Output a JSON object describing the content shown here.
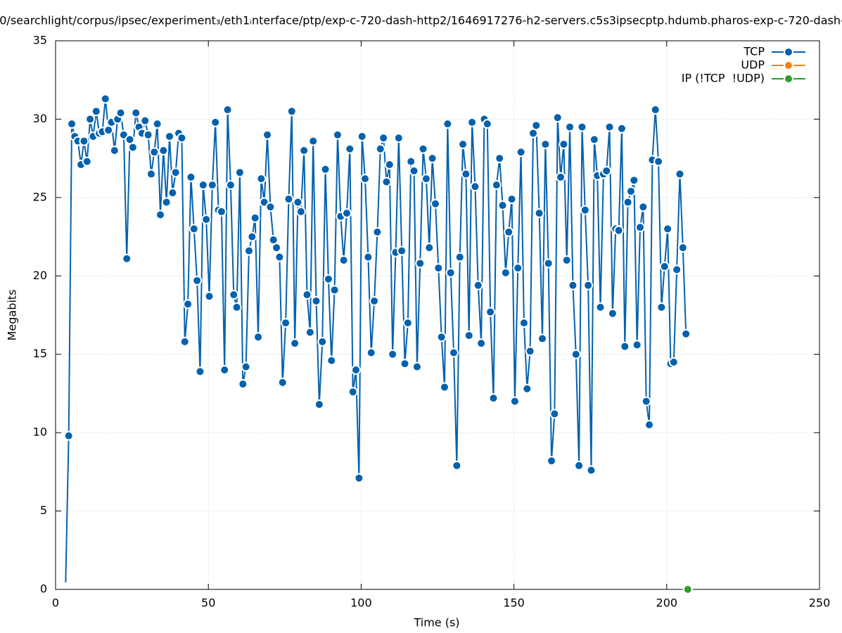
{
  "chart_data": {
    "type": "line",
    "title": "0/searchlight/corpus/ipsec/experiment₃/eth1ᵢnterface/ptp/exp-c-720-dash-http2/1646917276-h2-servers.c5s3ipsecptp.hdumb.pharos-exp-c-720-dash-",
    "x_label": "Time (s)",
    "y_label": "Megabits",
    "xlim": [
      0,
      250
    ],
    "xticks": [
      0,
      50,
      100,
      150,
      200,
      250
    ],
    "ylim": [
      0,
      35
    ],
    "yticks": [
      0,
      5,
      10,
      15,
      20,
      25,
      30,
      35
    ],
    "grid": true,
    "legend": "top-right",
    "series": [
      {
        "name": "TCP",
        "color": "#0461ad",
        "x": [
          3.3,
          4.3,
          5.3,
          6.3,
          7.3,
          8.3,
          9.3,
          10.3,
          11.3,
          12.3,
          13.3,
          14.3,
          15.3,
          16.3,
          17.3,
          18.3,
          19.3,
          20.3,
          21.3,
          22.3,
          23.3,
          24.3,
          25.3,
          26.3,
          27.3,
          28.3,
          29.3,
          30.3,
          31.3,
          32.3,
          33.3,
          34.3,
          35.3,
          36.3,
          37.3,
          38.3,
          39.3,
          40.3,
          41.3,
          42.3,
          43.3,
          44.3,
          45.3,
          46.3,
          47.3,
          48.3,
          49.3,
          50.3,
          51.3,
          52.3,
          53.3,
          54.3,
          55.3,
          56.3,
          57.3,
          58.3,
          59.3,
          60.3,
          61.3,
          62.3,
          63.3,
          64.3,
          65.3,
          66.3,
          67.3,
          68.3,
          69.3,
          70.3,
          71.3,
          72.3,
          73.3,
          74.3,
          75.3,
          76.3,
          77.3,
          78.3,
          79.3,
          80.3,
          81.3,
          82.3,
          83.3,
          84.3,
          85.3,
          86.3,
          87.3,
          88.3,
          89.3,
          90.3,
          91.3,
          92.3,
          93.3,
          94.3,
          95.3,
          96.3,
          97.3,
          98.3,
          99.3,
          100.3,
          101.3,
          102.3,
          103.3,
          104.3,
          105.3,
          106.3,
          107.3,
          108.3,
          109.3,
          110.3,
          111.3,
          112.3,
          113.3,
          114.3,
          115.3,
          116.3,
          117.3,
          118.3,
          119.3,
          120.3,
          121.3,
          122.3,
          123.3,
          124.3,
          125.3,
          126.3,
          127.3,
          128.3,
          129.3,
          130.3,
          131.3,
          132.3,
          133.3,
          134.3,
          135.3,
          136.3,
          137.3,
          138.3,
          139.3,
          140.3,
          141.3,
          142.3,
          143.3,
          144.3,
          145.3,
          146.3,
          147.3,
          148.3,
          149.3,
          150.3,
          151.3,
          152.3,
          153.3,
          154.3,
          155.3,
          156.3,
          157.3,
          158.3,
          159.3,
          160.3,
          161.3,
          162.3,
          163.3,
          164.3,
          165.3,
          166.3,
          167.3,
          168.3,
          169.3,
          170.3,
          171.3,
          172.3,
          173.3,
          174.3,
          175.3,
          176.3,
          177.3,
          178.3,
          179.3,
          180.3,
          181.3,
          182.3,
          183.3,
          184.3,
          185.3,
          186.3,
          187.3,
          188.3,
          189.3,
          190.3,
          191.3,
          192.3,
          193.3,
          194.3,
          195.3,
          196.3,
          197.3,
          198.3,
          199.3,
          200.3,
          201.3,
          202.3,
          203.3,
          204.3,
          205.3,
          206.3
        ],
        "values": [
          0.45,
          9.8,
          29.7,
          28.9,
          28.6,
          27.1,
          28.6,
          27.3,
          30.0,
          28.9,
          30.5,
          29.1,
          29.2,
          31.3,
          29.3,
          29.8,
          28.0,
          30.0,
          30.4,
          29.0,
          21.1,
          28.7,
          28.2,
          30.4,
          29.5,
          29.1,
          29.9,
          29.0,
          26.5,
          27.9,
          29.7,
          23.9,
          28.0,
          24.7,
          28.9,
          25.3,
          26.6,
          29.1,
          28.8,
          15.8,
          18.2,
          26.3,
          23.0,
          19.7,
          13.9,
          25.8,
          23.6,
          18.7,
          25.8,
          29.8,
          24.2,
          24.1,
          14.0,
          30.6,
          25.8,
          18.8,
          18.0,
          26.6,
          13.1,
          14.2,
          21.6,
          22.5,
          23.7,
          16.1,
          26.2,
          24.7,
          29.0,
          24.4,
          22.3,
          21.8,
          21.2,
          13.2,
          17.0,
          24.9,
          30.5,
          15.7,
          24.7,
          24.1,
          28.0,
          18.8,
          16.4,
          28.6,
          18.4,
          11.8,
          15.8,
          26.8,
          19.8,
          14.6,
          19.1,
          29.0,
          23.8,
          21.0,
          24.0,
          28.1,
          12.6,
          14.0,
          7.1,
          28.9,
          26.2,
          21.2,
          15.1,
          18.4,
          22.8,
          28.1,
          28.8,
          26.0,
          27.1,
          15.0,
          21.5,
          28.8,
          21.6,
          14.4,
          17.0,
          27.3,
          26.7,
          14.2,
          20.8,
          28.1,
          26.2,
          21.8,
          27.5,
          24.6,
          20.5,
          16.1,
          12.9,
          29.7,
          20.2,
          15.1,
          7.9,
          21.2,
          28.4,
          26.5,
          16.2,
          29.8,
          25.7,
          19.4,
          15.7,
          30.0,
          29.7,
          17.7,
          12.2,
          25.8,
          27.5,
          24.5,
          20.2,
          22.8,
          24.9,
          12.0,
          20.5,
          27.9,
          17.0,
          12.8,
          15.2,
          29.1,
          29.6,
          24.0,
          16.0,
          28.4,
          20.8,
          8.2,
          11.2,
          30.1,
          26.3,
          28.4,
          21.0,
          29.5,
          19.4,
          15.0,
          7.9,
          29.5,
          24.2,
          19.4,
          7.6,
          28.7,
          26.4,
          18.0,
          26.5,
          26.7,
          29.5,
          17.6,
          23.0,
          22.9,
          29.4,
          15.5,
          24.7,
          25.4,
          26.1,
          15.6,
          23.1,
          24.4,
          12.0,
          10.5,
          27.4,
          30.6,
          27.3,
          18.0,
          20.6,
          23.0,
          14.4,
          14.5,
          20.4,
          26.5,
          21.8,
          16.3
        ]
      },
      {
        "name": "UDP",
        "color": "#f7810f",
        "x": [],
        "values": []
      },
      {
        "name": "IP (!TCP  !UDP)",
        "color": "#2b9e2b",
        "x": [
          206.9
        ],
        "values": [
          0
        ]
      }
    ]
  }
}
